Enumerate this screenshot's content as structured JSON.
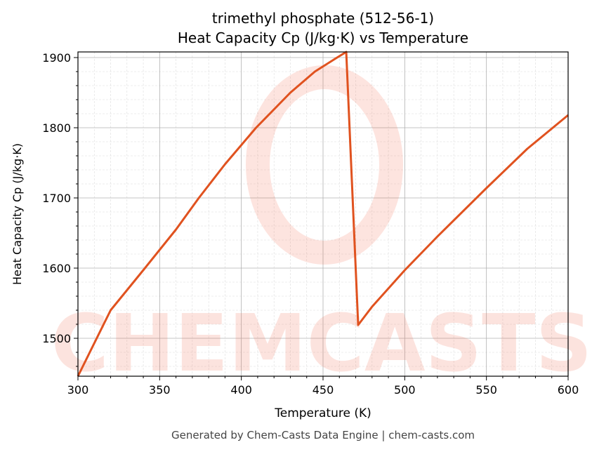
{
  "chart_data": {
    "type": "line",
    "title": "trimethyl phosphate (512-56-1)",
    "subtitle": "Heat Capacity Cp (J/kg·K) vs Temperature",
    "xlabel": "Temperature (K)",
    "ylabel": "Heat Capacity Cp (J/kg·K)",
    "xlim": [
      300,
      600
    ],
    "ylim": [
      1446,
      1908
    ],
    "xticks": [
      300,
      350,
      400,
      450,
      500,
      550,
      600
    ],
    "yticks": [
      1500,
      1600,
      1700,
      1800,
      1900
    ],
    "grid": true,
    "series": [
      {
        "name": "Cp",
        "color": "#e0521f",
        "x": [
          300,
          320,
          341,
          360,
          374,
          390,
          409,
          430,
          445,
          458.6,
          464.2,
          471.5,
          480,
          500,
          520,
          550,
          575,
          600
        ],
        "y": [
          1446,
          1540,
          1600,
          1655,
          1700,
          1748,
          1800,
          1850,
          1880,
          1900,
          1908,
          1519,
          1545,
          1597,
          1645,
          1714,
          1770,
          1818
        ]
      }
    ],
    "watermark": "CHEMCASTS",
    "footer": "Generated by Chem-Casts Data Engine | chem-casts.com"
  }
}
